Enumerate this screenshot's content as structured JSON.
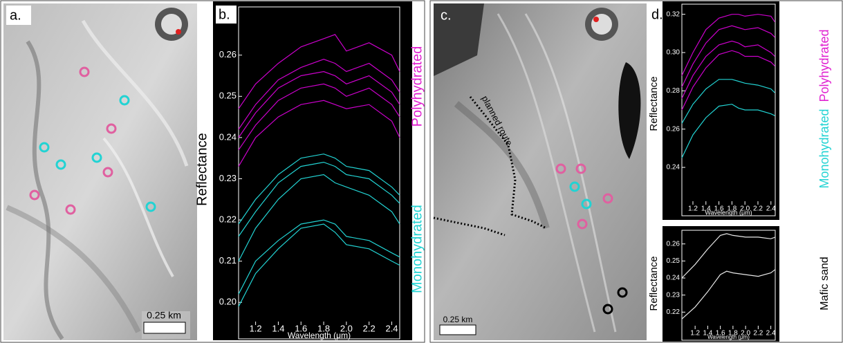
{
  "figure": {
    "panel_labels": [
      "a.",
      "b.",
      "c.",
      "d."
    ],
    "scale_bar": "0.25 km",
    "route_label": "planned route"
  },
  "chart_data": [
    {
      "type": "line",
      "xlabel": "Wavelength (μm)",
      "ylabel": "Reflectance",
      "x": [
        1.05,
        1.2,
        1.4,
        1.6,
        1.8,
        1.9,
        2.0,
        2.2,
        2.4,
        2.47
      ],
      "xlim": [
        1.05,
        2.47
      ],
      "ylim": [
        0.1945,
        0.2717
      ],
      "xticks": [
        1.2,
        1.4,
        1.6,
        1.8,
        {
          "value": 2,
          "label": "2.0"
        },
        2.2,
        2.4
      ],
      "yticks": [
        {
          "value": 0.2,
          "label": "0.20"
        },
        0.21,
        0.22,
        0.23,
        0.24,
        0.25,
        0.26
      ],
      "series": [
        {
          "color": "#cc00cc",
          "values": [
            0.247,
            0.253,
            0.258,
            0.262,
            0.264,
            0.265,
            0.261,
            0.263,
            0.26,
            0.256
          ]
        },
        {
          "color": "#cc00cc",
          "values": [
            0.242,
            0.248,
            0.254,
            0.257,
            0.259,
            0.258,
            0.256,
            0.258,
            0.254,
            0.251
          ]
        },
        {
          "color": "#cc00cc",
          "values": [
            0.24,
            0.246,
            0.252,
            0.255,
            0.256,
            0.255,
            0.253,
            0.255,
            0.251,
            0.248
          ]
        },
        {
          "color": "#cc00cc",
          "values": [
            0.237,
            0.243,
            0.249,
            0.252,
            0.253,
            0.252,
            0.25,
            0.252,
            0.248,
            0.245
          ]
        },
        {
          "color": "#cc00cc",
          "values": [
            0.233,
            0.24,
            0.245,
            0.248,
            0.249,
            0.248,
            0.247,
            0.248,
            0.244,
            0.24
          ]
        },
        {
          "color": "#22d3d3",
          "values": [
            0.219,
            0.225,
            0.231,
            0.235,
            0.236,
            0.235,
            0.233,
            0.232,
            0.228,
            0.226
          ]
        },
        {
          "color": "#22d3d3",
          "values": [
            0.216,
            0.222,
            0.229,
            0.233,
            0.234,
            0.233,
            0.231,
            0.23,
            0.226,
            0.224
          ]
        },
        {
          "color": "#22d3d3",
          "values": [
            0.21,
            0.218,
            0.225,
            0.23,
            0.231,
            0.229,
            0.228,
            0.226,
            0.222,
            0.219
          ]
        },
        {
          "color": "#22d3d3",
          "values": [
            0.202,
            0.21,
            0.215,
            0.219,
            0.22,
            0.219,
            0.216,
            0.215,
            0.212,
            0.211
          ]
        },
        {
          "color": "#22d3d3",
          "values": [
            0.199,
            0.207,
            0.213,
            0.218,
            0.219,
            0.217,
            0.214,
            0.213,
            0.21,
            0.209
          ]
        }
      ],
      "annotations": [
        {
          "text": "Polyhydrated",
          "color": "#e020d0"
        },
        {
          "text": "Monohydrated",
          "color": "#22d3d3"
        }
      ]
    },
    {
      "type": "line",
      "xlabel": "Wavelength (μm)",
      "ylabel": "Reflectance",
      "x": [
        1.03,
        1.2,
        1.4,
        1.6,
        1.8,
        1.9,
        2.0,
        2.2,
        2.4,
        2.46
      ],
      "xlim": [
        1.03,
        2.466
      ],
      "ylim": [
        0.2205,
        0.3253
      ],
      "xticks": [
        1.2,
        1.4,
        1.6,
        1.8,
        {
          "value": 2,
          "label": "2.0"
        },
        2.2,
        2.4
      ],
      "yticks": [
        0.24,
        0.26,
        0.28,
        {
          "value": 0.3,
          "label": "0.30"
        },
        0.32
      ],
      "series": [
        {
          "color": "#cc00cc",
          "values": [
            0.288,
            0.3,
            0.312,
            0.318,
            0.32,
            0.32,
            0.319,
            0.32,
            0.319,
            0.316
          ]
        },
        {
          "color": "#cc00cc",
          "values": [
            0.282,
            0.294,
            0.305,
            0.312,
            0.314,
            0.313,
            0.312,
            0.313,
            0.31,
            0.308
          ]
        },
        {
          "color": "#cc00cc",
          "values": [
            0.276,
            0.288,
            0.298,
            0.304,
            0.306,
            0.305,
            0.303,
            0.304,
            0.3,
            0.298
          ]
        },
        {
          "color": "#cc00cc",
          "values": [
            0.27,
            0.282,
            0.292,
            0.299,
            0.301,
            0.3,
            0.298,
            0.298,
            0.295,
            0.293
          ]
        },
        {
          "color": "#22d3d3",
          "values": [
            0.263,
            0.273,
            0.281,
            0.286,
            0.286,
            0.285,
            0.284,
            0.283,
            0.281,
            0.279
          ]
        },
        {
          "color": "#22d3d3",
          "values": [
            0.245,
            0.257,
            0.266,
            0.272,
            0.273,
            0.271,
            0.27,
            0.27,
            0.268,
            0.267
          ]
        }
      ],
      "annotations": [
        {
          "text": "Polyhydrated",
          "color": "#e020d0"
        },
        {
          "text": "Monohydrated",
          "color": "#22d3d3"
        }
      ]
    },
    {
      "type": "line",
      "xlabel": "Wavelength (μm)",
      "ylabel": "Reflectance",
      "x": [
        0.99,
        1.2,
        1.4,
        1.6,
        1.7,
        1.8,
        2.0,
        2.2,
        2.4,
        2.47
      ],
      "xlim": [
        0.99,
        2.47
      ],
      "ylim": [
        0.21,
        0.268
      ],
      "xticks": [
        1.2,
        1.4,
        1.6,
        1.8,
        {
          "value": 2,
          "label": "2.0"
        },
        2.2,
        2.4
      ],
      "yticks": [
        0.22,
        0.23,
        0.24,
        0.25,
        0.26
      ],
      "series": [
        {
          "color": "#e8e8e8",
          "values": [
            0.24,
            0.248,
            0.257,
            0.265,
            0.266,
            0.265,
            0.264,
            0.264,
            0.263,
            0.264
          ]
        },
        {
          "color": "#e8e8e8",
          "values": [
            0.216,
            0.223,
            0.232,
            0.242,
            0.244,
            0.243,
            0.242,
            0.241,
            0.243,
            0.245
          ]
        }
      ],
      "annotations": [
        {
          "text": "Mafic sand",
          "color": "#000000"
        }
      ]
    }
  ]
}
